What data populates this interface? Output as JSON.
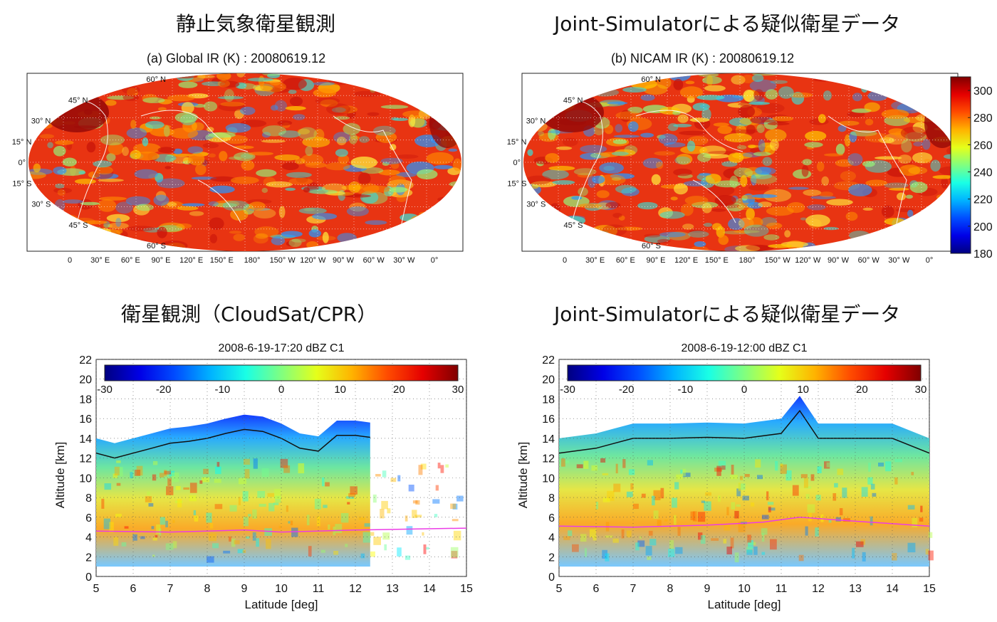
{
  "headings": {
    "top_left": "静止気象衛星観測",
    "top_right": "Joint-Simulatorによる疑似衛星データ",
    "bottom_left": "衛星観測（CloudSat/CPR）",
    "bottom_right": "Joint-Simulatorによる疑似衛星データ"
  },
  "chart_data": [
    {
      "type": "heatmap",
      "title": "(a) Global IR (K) : 20080619.12",
      "projection": "global map (Hammer-like), 0° to 360°",
      "lat_labels": [
        "60° N",
        "45° N",
        "30° N",
        "15° N",
        "0°",
        "15° S",
        "30° S",
        "45° S",
        "60° S"
      ],
      "lon_labels": [
        "0",
        "30° E",
        "60° E",
        "90° E",
        "120° E",
        "150° E",
        "180°",
        "150° W",
        "120° W",
        "90° W",
        "60° W",
        "30° W",
        "0°"
      ],
      "variable": "brightness temperature (K)",
      "colorbar_range": [
        180,
        310
      ]
    },
    {
      "type": "heatmap",
      "title": "(b) NICAM IR (K) : 20080619.12",
      "projection": "global map (Hammer-like), 0° to 360°",
      "lat_labels": [
        "60° N",
        "45° N",
        "30° N",
        "15° N",
        "0°",
        "15° S",
        "30° S",
        "45° S",
        "60° S"
      ],
      "lon_labels": [
        "0",
        "30° E",
        "60° E",
        "90° E",
        "120° E",
        "150° E",
        "180°",
        "150° W",
        "120° W",
        "90° W",
        "60° W",
        "30° W",
        "0°"
      ],
      "variable": "brightness temperature (K)",
      "colorbar_ticks": [
        180,
        200,
        220,
        240,
        260,
        280,
        300
      ],
      "colorbar_range": [
        180,
        310
      ]
    },
    {
      "type": "heatmap",
      "title": "2008-6-19-17:20 dBZ C1",
      "xlabel": "Latitude [deg]",
      "ylabel": "Altitude [km]",
      "xlim": [
        5,
        15
      ],
      "ylim": [
        0,
        22
      ],
      "xticks": [
        5,
        6,
        7,
        8,
        9,
        10,
        11,
        12,
        13,
        14,
        15
      ],
      "yticks": [
        0,
        2,
        4,
        6,
        8,
        10,
        12,
        14,
        16,
        18,
        20,
        22
      ],
      "colorbar_ticks": [
        -30,
        -20,
        -10,
        0,
        10,
        20,
        30
      ],
      "cloud_top_km": [
        [
          5,
          14
        ],
        [
          5.5,
          13.5
        ],
        [
          6,
          14
        ],
        [
          6.5,
          14.5
        ],
        [
          7,
          15
        ],
        [
          7.5,
          15.2
        ],
        [
          8,
          15.5
        ],
        [
          8.5,
          16
        ],
        [
          9,
          16.4
        ],
        [
          9.5,
          16.2
        ],
        [
          10,
          15.5
        ],
        [
          10.5,
          14.5
        ],
        [
          11,
          14.2
        ],
        [
          11.5,
          15.8
        ],
        [
          12,
          15.8
        ],
        [
          12.4,
          15.6
        ]
      ],
      "freezing_level_km": [
        [
          5,
          4.6
        ],
        [
          7,
          4.5
        ],
        [
          9,
          4.7
        ],
        [
          10,
          4.5
        ],
        [
          12,
          4.7
        ],
        [
          15,
          4.9
        ]
      ]
    },
    {
      "type": "heatmap",
      "title": "2008-6-19-12:00 dBZ C1",
      "xlabel": "Latitude [deg]",
      "ylabel": "Altitude [km]",
      "xlim": [
        5,
        15
      ],
      "ylim": [
        0,
        22
      ],
      "xticks": [
        5,
        6,
        7,
        8,
        9,
        10,
        11,
        12,
        13,
        14,
        15
      ],
      "yticks": [
        0,
        2,
        4,
        6,
        8,
        10,
        12,
        14,
        16,
        18,
        20,
        22
      ],
      "colorbar_ticks": [
        -30,
        -20,
        -10,
        0,
        10,
        20,
        30
      ],
      "cloud_top_km": [
        [
          5,
          14
        ],
        [
          6,
          14.5
        ],
        [
          6.5,
          15
        ],
        [
          7,
          15.5
        ],
        [
          8,
          15.5
        ],
        [
          9,
          15.6
        ],
        [
          10,
          15.5
        ],
        [
          11,
          16
        ],
        [
          11.5,
          18.3
        ],
        [
          12,
          15.5
        ],
        [
          13,
          15.5
        ],
        [
          14,
          15.5
        ],
        [
          15,
          14
        ]
      ],
      "freezing_level_km": [
        [
          5,
          5.1
        ],
        [
          7,
          5
        ],
        [
          9,
          5.2
        ],
        [
          10.5,
          5.5
        ],
        [
          11.5,
          6
        ],
        [
          13,
          5.6
        ],
        [
          15,
          5.1
        ]
      ]
    }
  ]
}
